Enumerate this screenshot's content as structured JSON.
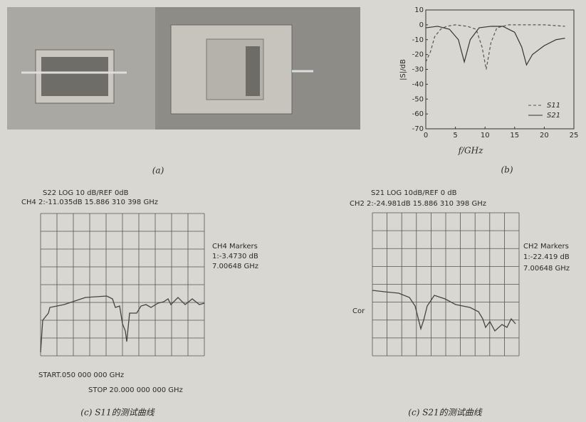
{
  "photo": {
    "caption": "(a)"
  },
  "chart_data": {
    "type": "line",
    "caption": "(b)",
    "xlabel": "f/GHz",
    "ylabel": "|S|/dB",
    "xlim": [
      0,
      25
    ],
    "ylim": [
      -70,
      10
    ],
    "xticks": [
      0,
      5,
      10,
      15,
      20,
      25
    ],
    "yticks": [
      10,
      0,
      -10,
      -20,
      -30,
      -40,
      -50,
      -60,
      -70
    ],
    "series": [
      {
        "name": "S11",
        "color": "#555555",
        "dash": true,
        "x": [
          0,
          0.8,
          1.5,
          2.5,
          3.5,
          5,
          7,
          8.5,
          9.5,
          10.2,
          11,
          12,
          14,
          17,
          20,
          23.5
        ],
        "values": [
          -25,
          -18,
          -8,
          -3,
          -1,
          0,
          -1,
          -3,
          -15,
          -30,
          -12,
          -2,
          0,
          0,
          0,
          -1
        ]
      },
      {
        "name": "S21",
        "color": "#333333",
        "dash": false,
        "x": [
          0,
          2,
          4,
          5.5,
          6.5,
          7.5,
          9,
          11,
          13,
          15,
          16.2,
          17,
          18,
          20,
          22,
          23.5
        ],
        "values": [
          -2,
          -1,
          -3,
          -10,
          -25,
          -10,
          -2,
          -1,
          -1,
          -5,
          -15,
          -27,
          -20,
          -14,
          -10,
          -9
        ]
      }
    ]
  },
  "measurement_s11": {
    "header": "S22  LOG 10 dB/REF  0dB",
    "marker_line": "CH4  2:-11.035dB  15.886 310 398 GHz",
    "markers_title": "CH4 Markers",
    "marker_value": "1:-3.4730 dB",
    "marker_freq": "7.00648 GHz",
    "start": "START.050 000 000 GHz",
    "stop": "STOP 20.000 000 000 GHz",
    "caption": "(c) S11的测试曲线"
  },
  "measurement_s21": {
    "header": "S21  LOG 10dB/REF 0 dB",
    "marker_line": "CH2  2:-24.981dB  15.886 310 398 GHz",
    "markers_title": "CH2 Markers",
    "marker_value": "1:-22.419 dB",
    "marker_freq": "7.00648 GHz",
    "side_label": "Cor",
    "caption": "(c) S21的测试曲线"
  }
}
